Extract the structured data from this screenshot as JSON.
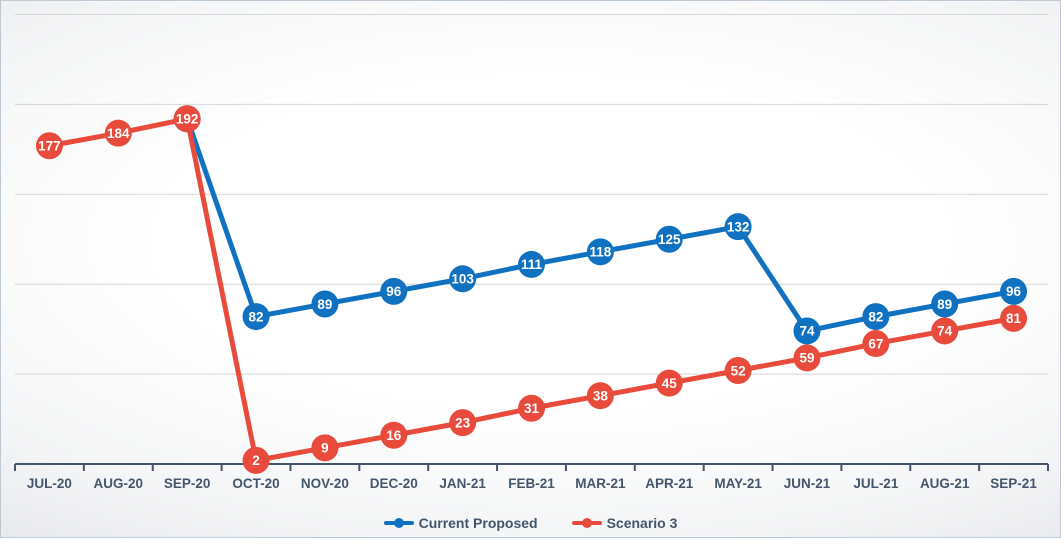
{
  "chart_data": {
    "type": "line",
    "title": "",
    "categories": [
      "JUL-20",
      "AUG-20",
      "SEP-20",
      "OCT-20",
      "NOV-20",
      "DEC-20",
      "JAN-21",
      "FEB-21",
      "MAR-21",
      "APR-21",
      "MAY-21",
      "JUN-21",
      "JUL-21",
      "AUG-21",
      "SEP-21"
    ],
    "series": [
      {
        "name": "Current Proposed",
        "color": "#1171c1",
        "values": [
          null,
          null,
          192,
          82,
          89,
          96,
          103,
          111,
          118,
          125,
          132,
          74,
          82,
          89,
          96
        ]
      },
      {
        "name": "Scenario 3",
        "color": "#e84b3c",
        "values": [
          177,
          184,
          192,
          2,
          9,
          16,
          23,
          31,
          38,
          45,
          52,
          59,
          67,
          74,
          81
        ]
      }
    ],
    "ylim": [
      0,
      250
    ],
    "grid": "horizontal gridlines every 50, no y-axis labels",
    "legend_position": "bottom",
    "data_labels": "values shown in circular markers on every point"
  },
  "colors": {
    "axis": "#44546a",
    "axis_label": "#44556c",
    "gridline": "#d4d5d7",
    "data_label_text": "#ffffff",
    "frame_border": "#bfc9d3"
  }
}
